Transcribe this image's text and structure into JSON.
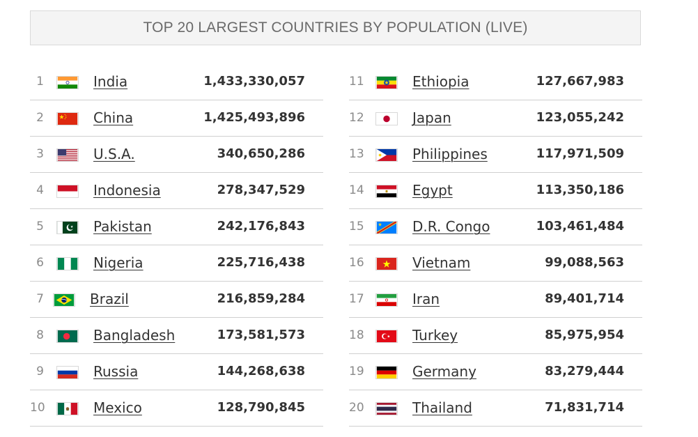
{
  "title": "TOP 20 LARGEST COUNTRIES BY POPULATION (LIVE)",
  "columns": [
    [
      {
        "rank": "1",
        "country": "India",
        "population": "1,433,330,057",
        "flag": "india-flag-icon"
      },
      {
        "rank": "2",
        "country": "China",
        "population": "1,425,493,896",
        "flag": "china-flag-icon"
      },
      {
        "rank": "3",
        "country": "U.S.A.",
        "population": "340,650,286",
        "flag": "usa-flag-icon"
      },
      {
        "rank": "4",
        "country": "Indonesia",
        "population": "278,347,529",
        "flag": "indonesia-flag-icon"
      },
      {
        "rank": "5",
        "country": "Pakistan",
        "population": "242,176,843",
        "flag": "pakistan-flag-icon"
      },
      {
        "rank": "6",
        "country": "Nigeria",
        "population": "225,716,438",
        "flag": "nigeria-flag-icon"
      },
      {
        "rank": "7",
        "country": "Brazil",
        "population": "216,859,284",
        "flag": "brazil-flag-icon"
      },
      {
        "rank": "8",
        "country": "Bangladesh",
        "population": "173,581,573",
        "flag": "bangladesh-flag-icon"
      },
      {
        "rank": "9",
        "country": "Russia",
        "population": "144,268,638",
        "flag": "russia-flag-icon"
      },
      {
        "rank": "10",
        "country": "Mexico",
        "population": "128,790,845",
        "flag": "mexico-flag-icon"
      }
    ],
    [
      {
        "rank": "11",
        "country": "Ethiopia",
        "population": "127,667,983",
        "flag": "ethiopia-flag-icon"
      },
      {
        "rank": "12",
        "country": "Japan",
        "population": "123,055,242",
        "flag": "japan-flag-icon"
      },
      {
        "rank": "13",
        "country": "Philippines",
        "population": "117,971,509",
        "flag": "philippines-flag-icon"
      },
      {
        "rank": "14",
        "country": "Egypt",
        "population": "113,350,186",
        "flag": "egypt-flag-icon"
      },
      {
        "rank": "15",
        "country": "D.R. Congo",
        "population": "103,461,484",
        "flag": "dr-congo-flag-icon"
      },
      {
        "rank": "16",
        "country": "Vietnam",
        "population": "99,088,563",
        "flag": "vietnam-flag-icon"
      },
      {
        "rank": "17",
        "country": "Iran",
        "population": "89,401,714",
        "flag": "iran-flag-icon"
      },
      {
        "rank": "18",
        "country": "Turkey",
        "population": "85,975,954",
        "flag": "turkey-flag-icon"
      },
      {
        "rank": "19",
        "country": "Germany",
        "population": "83,279,444",
        "flag": "germany-flag-icon"
      },
      {
        "rank": "20",
        "country": "Thailand",
        "population": "71,831,714",
        "flag": "thailand-flag-icon"
      }
    ]
  ]
}
